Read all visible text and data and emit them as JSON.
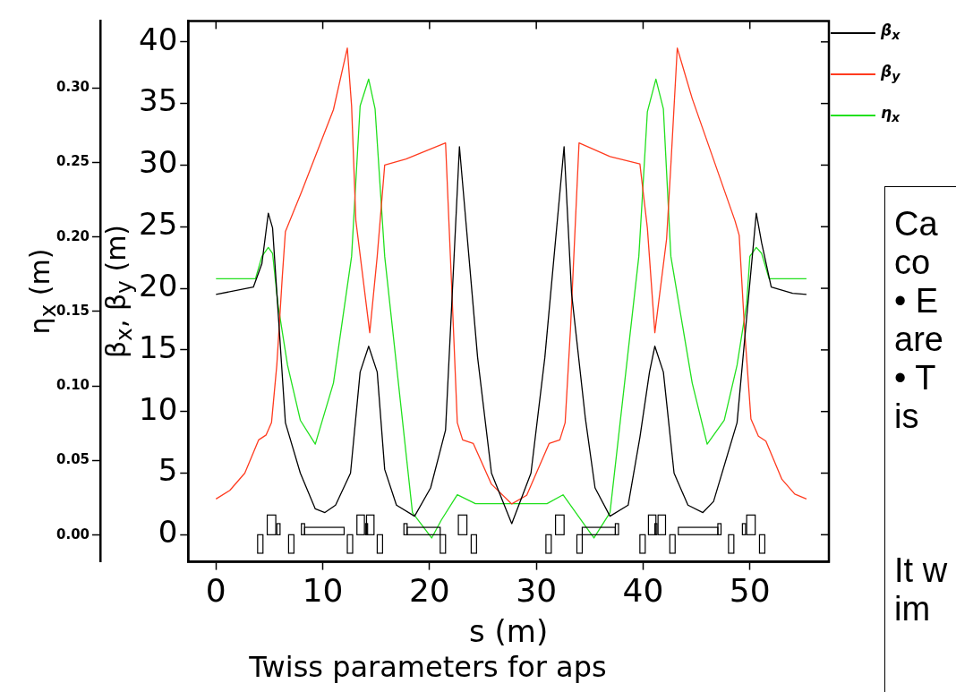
{
  "chart_data": {
    "type": "line",
    "title": "Twiss parameters for aps",
    "xlabel": "s (m)",
    "ylabel": "β$_{x}$, β$_{y}$ (m)",
    "y2label": "η$_{x}$ (m)",
    "xlim": [
      -2.6,
      57.4
    ],
    "xticks": [
      0,
      10,
      20,
      30,
      40,
      50
    ],
    "ylim": [
      -2.2,
      41.7
    ],
    "yticks": [
      0,
      5,
      10,
      15,
      20,
      25,
      30,
      35,
      40
    ],
    "y2lim": [
      -0.018,
      0.345
    ],
    "y2ticks": [
      {
        "value": 0,
        "label": "0.00"
      },
      {
        "value": 0.05,
        "label": "0.05"
      },
      {
        "value": 0.1,
        "label": "0.10"
      },
      {
        "value": 0.15,
        "label": "0.15"
      },
      {
        "value": 0.2,
        "label": "0.20"
      },
      {
        "value": 0.25,
        "label": "0.25"
      },
      {
        "value": 0.3,
        "label": "0.30"
      }
    ],
    "grid": false,
    "legend": "top right",
    "marker": "none",
    "line_style": "solid",
    "annotations": [
      "Ca\nco\n• E\nare\n• T\nis\n\n\n\nIt w\nim"
    ],
    "series": [
      {
        "name": "β$_{x}$",
        "color": "#000000",
        "x": [
          0,
          3.5,
          4.3,
          4.9,
          5.3,
          6.5,
          7.9,
          9.3,
          10.2,
          11.2,
          12.6,
          13.5,
          14.3,
          15.1,
          15.8,
          16.9,
          18.6,
          20.1,
          21.5,
          22.3,
          22.8,
          24.5,
          25.8,
          27.7,
          29.5,
          30.8,
          32.6,
          33.3,
          34.6,
          35.5,
          36.9,
          38.6,
          39.7,
          40.6,
          41.1,
          41.9,
          42.9,
          44.2,
          45.6,
          46.6,
          48.8,
          49.6,
          50.6,
          51.1,
          52.0,
          54.0,
          55.3
        ],
        "values": [
          19.5,
          20.1,
          22.0,
          26.1,
          24.9,
          9.1,
          5.0,
          2.1,
          1.8,
          2.4,
          5.0,
          13.2,
          15.3,
          13.2,
          5.3,
          2.4,
          1.5,
          3.8,
          8.5,
          22.6,
          31.5,
          14.4,
          5.0,
          0.9,
          5.0,
          14.4,
          31.5,
          19.6,
          9.4,
          3.8,
          1.5,
          2.4,
          7.9,
          13.2,
          15.3,
          13.2,
          5.0,
          2.4,
          1.8,
          2.7,
          9.1,
          16.7,
          26.1,
          23.7,
          20.1,
          19.6,
          19.5
        ]
      },
      {
        "name": "β$_{y}$",
        "color": "#ff3b1f",
        "x": [
          0,
          1.3,
          2.7,
          4.0,
          4.7,
          5.2,
          5.7,
          6.2,
          6.5,
          8.0,
          11.0,
          12.3,
          12.7,
          13.1,
          14.4,
          15.1,
          15.8,
          17.8,
          21.5,
          22.1,
          22.6,
          23.1,
          24.1,
          25.8,
          27.7,
          29.1,
          31.2,
          32.2,
          32.7,
          33.2,
          34.0,
          36.9,
          39.7,
          40.4,
          41.1,
          42.2,
          42.6,
          43.2,
          44.6,
          48.6,
          49.0,
          49.5,
          50.1,
          50.8,
          51.5,
          53.0,
          54.2,
          55.3
        ],
        "values": [
          2.9,
          3.6,
          5.0,
          7.7,
          8.1,
          9.1,
          13.8,
          20.8,
          24.6,
          27.8,
          34.5,
          39.5,
          34.8,
          25.5,
          16.4,
          22.6,
          30.0,
          30.5,
          31.8,
          19.6,
          9.1,
          7.7,
          7.4,
          4.1,
          2.5,
          3.2,
          7.4,
          7.7,
          9.1,
          16.7,
          31.8,
          30.7,
          30.1,
          24.9,
          16.4,
          24.0,
          30.0,
          39.5,
          35.4,
          25.5,
          24.3,
          16.7,
          9.4,
          8.0,
          7.6,
          4.5,
          3.3,
          2.9
        ]
      },
      {
        "name": "η$_{x}$",
        "color": "#22e01e",
        "axis": "y2",
        "x": [
          0,
          3.7,
          4.3,
          4.9,
          5.3,
          5.8,
          6.7,
          7.9,
          9.3,
          11.0,
          12.7,
          13.5,
          14.3,
          14.9,
          15.8,
          18.4,
          20.2,
          21.1,
          22.6,
          24.3,
          31.0,
          32.5,
          34.7,
          35.4,
          36.9,
          39.6,
          40.4,
          41.2,
          41.9,
          42.6,
          44.6,
          46.0,
          47.6,
          48.8,
          49.7,
          50.0,
          50.6,
          51.1,
          51.8,
          55.3
        ],
        "values": [
          0.172,
          0.172,
          0.187,
          0.193,
          0.189,
          0.155,
          0.114,
          0.077,
          0.061,
          0.102,
          0.187,
          0.288,
          0.306,
          0.286,
          0.187,
          0.015,
          -0.002,
          0.01,
          0.027,
          0.021,
          0.021,
          0.027,
          0.005,
          -0.002,
          0.015,
          0.187,
          0.284,
          0.306,
          0.286,
          0.187,
          0.102,
          0.061,
          0.077,
          0.114,
          0.155,
          0.187,
          0.193,
          0.189,
          0.172,
          0.172
        ]
      }
    ]
  }
}
